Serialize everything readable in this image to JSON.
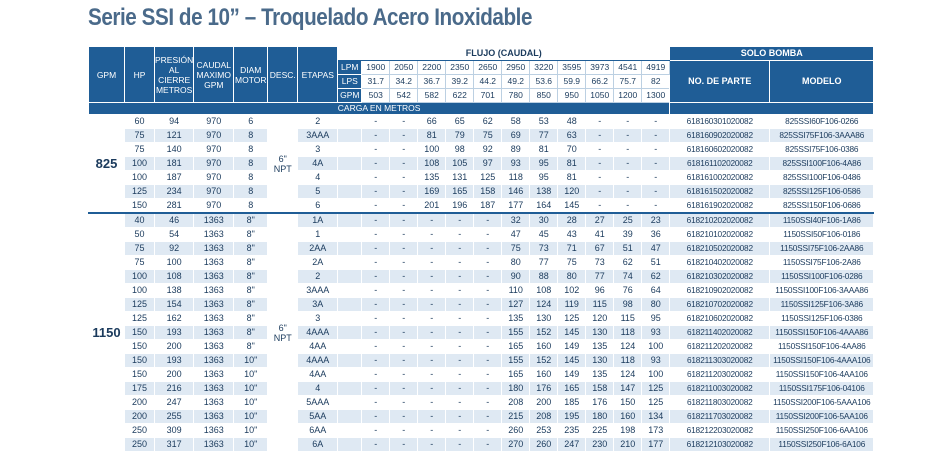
{
  "title": "Serie SSI de 10” – Troquelado Acero Inoxidable",
  "headers": {
    "gpm": "GPM",
    "hp": "HP",
    "presion": "PRESIÓN AL CIERRE METROS",
    "caudal": "CAUDAL MAXIMO GPM",
    "diam": "DIAM MOTOR",
    "desc": "DESC.",
    "etapas": "ETAPAS",
    "flujo": "FLUJO (CAUDAL)",
    "solo_bomba": "SOLO BOMBA",
    "no_parte": "NO. DE PARTE",
    "modelo": "MODELO",
    "carga": "CARGA EN METROS"
  },
  "flow_units": [
    {
      "unit": "LPM",
      "values": [
        "1900",
        "2050",
        "2200",
        "2350",
        "2650",
        "2950",
        "3220",
        "3595",
        "3973",
        "4541",
        "4919"
      ]
    },
    {
      "unit": "LPS",
      "values": [
        "31.7",
        "34.2",
        "36.7",
        "39.2",
        "44.2",
        "49.2",
        "53.6",
        "59.9",
        "66.2",
        "75.7",
        "82"
      ]
    },
    {
      "unit": "GPM",
      "values": [
        "503",
        "542",
        "582",
        "622",
        "701",
        "780",
        "850",
        "950",
        "1050",
        "1200",
        "1300"
      ]
    }
  ],
  "groups": [
    {
      "gpm": "825",
      "desc_line1": "6\"",
      "desc_line2": "NPT",
      "rows": [
        {
          "hp": "60",
          "presion": "94",
          "caudal": "970",
          "diam": "6",
          "etapas": "2",
          "carga": [
            "-",
            "-",
            "66",
            "65",
            "62",
            "58",
            "53",
            "48",
            "-",
            "-",
            "-"
          ],
          "parte": "618160301020082",
          "modelo": "825SSI60F106-0266"
        },
        {
          "hp": "75",
          "presion": "121",
          "caudal": "970",
          "diam": "8",
          "etapas": "3AAA",
          "carga": [
            "-",
            "-",
            "81",
            "79",
            "75",
            "69",
            "77",
            "63",
            "-",
            "-",
            "-"
          ],
          "parte": "618160902020082",
          "modelo": "825SSI75F106-3AAA86"
        },
        {
          "hp": "75",
          "presion": "140",
          "caudal": "970",
          "diam": "8",
          "etapas": "3",
          "carga": [
            "-",
            "-",
            "100",
            "98",
            "92",
            "89",
            "81",
            "70",
            "-",
            "-",
            "-"
          ],
          "parte": "618160602020082",
          "modelo": "825SSI75F106-0386"
        },
        {
          "hp": "100",
          "presion": "181",
          "caudal": "970",
          "diam": "8",
          "etapas": "4A",
          "carga": [
            "-",
            "-",
            "108",
            "105",
            "97",
            "93",
            "95",
            "81",
            "-",
            "-",
            "-"
          ],
          "parte": "618161102020082",
          "modelo": "825SSI100F106-4A86"
        },
        {
          "hp": "100",
          "presion": "187",
          "caudal": "970",
          "diam": "8",
          "etapas": "4",
          "carga": [
            "-",
            "-",
            "135",
            "131",
            "125",
            "118",
            "95",
            "81",
            "-",
            "-",
            "-"
          ],
          "parte": "618161002020082",
          "modelo": "825SSI100F106-0486"
        },
        {
          "hp": "125",
          "presion": "234",
          "caudal": "970",
          "diam": "8",
          "etapas": "5",
          "carga": [
            "-",
            "-",
            "169",
            "165",
            "158",
            "146",
            "138",
            "120",
            "-",
            "-",
            "-"
          ],
          "parte": "618161502020082",
          "modelo": "825SSI125F106-0586"
        },
        {
          "hp": "150",
          "presion": "281",
          "caudal": "970",
          "diam": "8",
          "etapas": "6",
          "carga": [
            "-",
            "-",
            "201",
            "196",
            "187",
            "177",
            "164",
            "145",
            "-",
            "-",
            "-"
          ],
          "parte": "618161902020082",
          "modelo": "825SSI150F106-0686"
        }
      ]
    },
    {
      "gpm": "1150",
      "desc_line1": "6\"",
      "desc_line2": "NPT",
      "rows": [
        {
          "hp": "40",
          "presion": "46",
          "caudal": "1363",
          "diam": "8\"",
          "etapas": "1A",
          "carga": [
            "-",
            "-",
            "-",
            "-",
            "-",
            "32",
            "30",
            "28",
            "27",
            "25",
            "23"
          ],
          "parte": "618210202020082",
          "modelo": "1150SSI40F106-1A86"
        },
        {
          "hp": "50",
          "presion": "54",
          "caudal": "1363",
          "diam": "8\"",
          "etapas": "1",
          "carga": [
            "-",
            "-",
            "-",
            "-",
            "-",
            "47",
            "45",
            "43",
            "41",
            "39",
            "36"
          ],
          "parte": "618210102020082",
          "modelo": "1150SSI50F106-0186"
        },
        {
          "hp": "75",
          "presion": "92",
          "caudal": "1363",
          "diam": "8\"",
          "etapas": "2AA",
          "carga": [
            "-",
            "-",
            "-",
            "-",
            "-",
            "75",
            "73",
            "71",
            "67",
            "51",
            "47"
          ],
          "parte": "618210502020082",
          "modelo": "1150SSI75F106-2AA86"
        },
        {
          "hp": "75",
          "presion": "100",
          "caudal": "1363",
          "diam": "8\"",
          "etapas": "2A",
          "carga": [
            "-",
            "-",
            "-",
            "-",
            "-",
            "80",
            "77",
            "75",
            "73",
            "62",
            "51"
          ],
          "parte": "618210402020082",
          "modelo": "1150SSI75F106-2A86"
        },
        {
          "hp": "100",
          "presion": "108",
          "caudal": "1363",
          "diam": "8\"",
          "etapas": "2",
          "carga": [
            "-",
            "-",
            "-",
            "-",
            "-",
            "90",
            "88",
            "80",
            "77",
            "74",
            "62"
          ],
          "parte": "618210302020082",
          "modelo": "1150SSI100F106-0286"
        },
        {
          "hp": "100",
          "presion": "138",
          "caudal": "1363",
          "diam": "8\"",
          "etapas": "3AAA",
          "carga": [
            "-",
            "-",
            "-",
            "-",
            "-",
            "110",
            "108",
            "102",
            "96",
            "76",
            "64"
          ],
          "parte": "618210902020082",
          "modelo": "1150SSI100F106-3AAA86"
        },
        {
          "hp": "125",
          "presion": "154",
          "caudal": "1363",
          "diam": "8\"",
          "etapas": "3A",
          "carga": [
            "-",
            "-",
            "-",
            "-",
            "-",
            "127",
            "124",
            "119",
            "115",
            "98",
            "80"
          ],
          "parte": "618210702020082",
          "modelo": "1150SSI125F106-3A86"
        },
        {
          "hp": "125",
          "presion": "162",
          "caudal": "1363",
          "diam": "8\"",
          "etapas": "3",
          "carga": [
            "-",
            "-",
            "-",
            "-",
            "-",
            "135",
            "130",
            "125",
            "120",
            "115",
            "95"
          ],
          "parte": "618210602020082",
          "modelo": "1150SSI125F106-0386"
        },
        {
          "hp": "150",
          "presion": "193",
          "caudal": "1363",
          "diam": "8\"",
          "etapas": "4AAA",
          "carga": [
            "-",
            "-",
            "-",
            "-",
            "-",
            "155",
            "152",
            "145",
            "130",
            "118",
            "93"
          ],
          "parte": "618211402020082",
          "modelo": "1150SSI150F106-4AAA86"
        },
        {
          "hp": "150",
          "presion": "200",
          "caudal": "1363",
          "diam": "8\"",
          "etapas": "4AA",
          "carga": [
            "-",
            "-",
            "-",
            "-",
            "-",
            "165",
            "160",
            "149",
            "135",
            "124",
            "100"
          ],
          "parte": "618211202020082",
          "modelo": "1150SSI150F106-4AA86"
        },
        {
          "hp": "150",
          "presion": "193",
          "caudal": "1363",
          "diam": "10\"",
          "etapas": "4AAA",
          "carga": [
            "-",
            "-",
            "-",
            "-",
            "-",
            "155",
            "152",
            "145",
            "130",
            "118",
            "93"
          ],
          "parte": "618211303020082",
          "modelo": "1150SSI150F106-4AAA106"
        },
        {
          "hp": "150",
          "presion": "200",
          "caudal": "1363",
          "diam": "10\"",
          "etapas": "4AA",
          "carga": [
            "-",
            "-",
            "-",
            "-",
            "-",
            "165",
            "160",
            "149",
            "135",
            "124",
            "100"
          ],
          "parte": "618211203020082",
          "modelo": "1150SSI150F106-4AA106"
        },
        {
          "hp": "175",
          "presion": "216",
          "caudal": "1363",
          "diam": "10\"",
          "etapas": "4",
          "carga": [
            "-",
            "-",
            "-",
            "-",
            "-",
            "180",
            "176",
            "165",
            "158",
            "147",
            "125"
          ],
          "parte": "618211003020082",
          "modelo": "1150SSI175F106-04106"
        },
        {
          "hp": "200",
          "presion": "247",
          "caudal": "1363",
          "diam": "10\"",
          "etapas": "5AAA",
          "carga": [
            "-",
            "-",
            "-",
            "-",
            "-",
            "208",
            "200",
            "185",
            "176",
            "150",
            "125"
          ],
          "parte": "618211803020082",
          "modelo": "1150SSI200F106-5AAA106"
        },
        {
          "hp": "200",
          "presion": "255",
          "caudal": "1363",
          "diam": "10\"",
          "etapas": "5AA",
          "carga": [
            "-",
            "-",
            "-",
            "-",
            "-",
            "215",
            "208",
            "195",
            "180",
            "160",
            "134"
          ],
          "parte": "618211703020082",
          "modelo": "1150SSI200F106-5AA106"
        },
        {
          "hp": "250",
          "presion": "309",
          "caudal": "1363",
          "diam": "10\"",
          "etapas": "6AA",
          "carga": [
            "-",
            "-",
            "-",
            "-",
            "-",
            "260",
            "253",
            "235",
            "225",
            "198",
            "173"
          ],
          "parte": "618212203020082",
          "modelo": "1150SSI250F106-6AA106"
        },
        {
          "hp": "250",
          "presion": "317",
          "caudal": "1363",
          "diam": "10\"",
          "etapas": "6A",
          "carga": [
            "-",
            "-",
            "-",
            "-",
            "-",
            "270",
            "260",
            "247",
            "230",
            "210",
            "177"
          ],
          "parte": "618212103020082",
          "modelo": "1150SSI250F106-6A106"
        }
      ]
    }
  ]
}
